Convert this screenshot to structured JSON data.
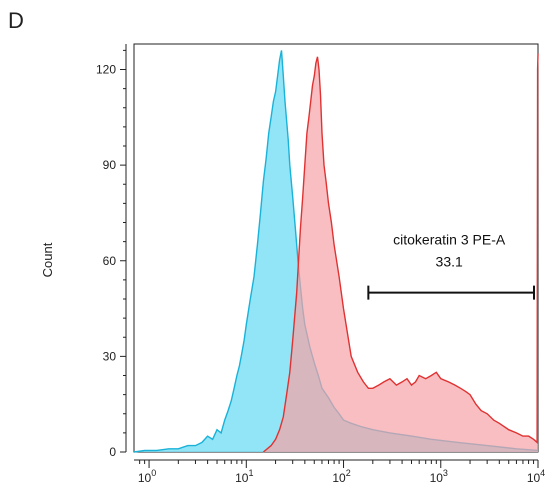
{
  "panel_label": "D",
  "chart_data": {
    "type": "area",
    "title": "",
    "xlabel": "",
    "ylabel": "Count",
    "xscale": "log",
    "xlim": [
      0.7,
      10000
    ],
    "ylim": [
      0,
      128
    ],
    "x_ticks": [
      {
        "value": 1,
        "base": "10",
        "exp": "0"
      },
      {
        "value": 10,
        "base": "10",
        "exp": "1"
      },
      {
        "value": 100,
        "base": "10",
        "exp": "2"
      },
      {
        "value": 1000,
        "base": "10",
        "exp": "3"
      },
      {
        "value": 10000,
        "base": "10",
        "exp": "4"
      }
    ],
    "y_ticks": [
      0,
      30,
      60,
      90,
      120
    ],
    "grid": false,
    "series": [
      {
        "color": "#1ab2d8",
        "fill": "#7fe0f5",
        "points": [
          [
            0.7,
            0
          ],
          [
            0.9,
            0.5
          ],
          [
            1.2,
            0.5
          ],
          [
            1.6,
            1
          ],
          [
            2.0,
            1
          ],
          [
            2.5,
            2
          ],
          [
            3.0,
            2
          ],
          [
            3.5,
            3
          ],
          [
            4.0,
            5
          ],
          [
            4.5,
            4
          ],
          [
            5.0,
            7
          ],
          [
            5.5,
            6
          ],
          [
            6.0,
            10
          ],
          [
            6.5,
            13
          ],
          [
            7.0,
            16
          ],
          [
            7.5,
            20
          ],
          [
            8.0,
            24
          ],
          [
            8.5,
            27
          ],
          [
            9.0,
            31
          ],
          [
            9.5,
            35
          ],
          [
            10.0,
            40
          ],
          [
            11.0,
            48
          ],
          [
            12.0,
            55
          ],
          [
            13.0,
            65
          ],
          [
            14.0,
            75
          ],
          [
            15.0,
            85
          ],
          [
            16.0,
            92
          ],
          [
            17.0,
            100
          ],
          [
            18.0,
            105
          ],
          [
            19.0,
            110
          ],
          [
            20.0,
            113
          ],
          [
            21.0,
            118
          ],
          [
            22.0,
            123
          ],
          [
            23.0,
            126
          ],
          [
            24.0,
            118
          ],
          [
            25.0,
            110
          ],
          [
            26.0,
            104
          ],
          [
            27.0,
            98
          ],
          [
            28.0,
            90
          ],
          [
            30.0,
            80
          ],
          [
            32.0,
            70
          ],
          [
            34.0,
            60
          ],
          [
            36.0,
            52
          ],
          [
            38.0,
            45
          ],
          [
            40.0,
            40
          ],
          [
            45.0,
            33
          ],
          [
            50.0,
            28
          ],
          [
            55.0,
            24
          ],
          [
            60.0,
            20
          ],
          [
            70.0,
            17
          ],
          [
            80.0,
            14
          ],
          [
            90.0,
            12
          ],
          [
            100.0,
            10
          ],
          [
            120.0,
            9
          ],
          [
            150.0,
            8
          ],
          [
            200.0,
            7
          ],
          [
            300.0,
            6
          ],
          [
            500.0,
            5
          ],
          [
            800.0,
            4
          ],
          [
            1500.0,
            3
          ],
          [
            3000.0,
            2
          ],
          [
            6000.0,
            1
          ],
          [
            10000.0,
            0.5
          ]
        ]
      },
      {
        "color": "#e03232",
        "fill": "#f7a3a6",
        "points": [
          [
            15.0,
            0
          ],
          [
            18.0,
            2
          ],
          [
            20.0,
            4
          ],
          [
            22.0,
            7
          ],
          [
            24.0,
            11
          ],
          [
            26.0,
            18
          ],
          [
            28.0,
            25
          ],
          [
            30.0,
            35
          ],
          [
            33.0,
            50
          ],
          [
            36.0,
            70
          ],
          [
            38.0,
            80
          ],
          [
            40.0,
            90
          ],
          [
            42.0,
            100
          ],
          [
            44.0,
            105
          ],
          [
            46.0,
            110
          ],
          [
            48.0,
            115
          ],
          [
            50.0,
            118
          ],
          [
            52.0,
            122
          ],
          [
            54.0,
            124
          ],
          [
            56.0,
            120
          ],
          [
            58.0,
            112
          ],
          [
            60.0,
            100
          ],
          [
            63.0,
            90
          ],
          [
            66.0,
            85
          ],
          [
            70.0,
            78
          ],
          [
            75.0,
            72
          ],
          [
            80.0,
            65
          ],
          [
            90.0,
            55
          ],
          [
            100.0,
            45
          ],
          [
            110.0,
            37
          ],
          [
            120.0,
            30
          ],
          [
            140.0,
            25
          ],
          [
            160.0,
            22
          ],
          [
            180.0,
            20
          ],
          [
            200.0,
            20
          ],
          [
            230.0,
            21
          ],
          [
            260.0,
            22
          ],
          [
            300.0,
            23
          ],
          [
            350.0,
            21
          ],
          [
            400.0,
            22
          ],
          [
            450.0,
            23
          ],
          [
            500.0,
            21
          ],
          [
            550.0,
            22
          ],
          [
            600.0,
            24
          ],
          [
            700.0,
            23
          ],
          [
            800.0,
            24
          ],
          [
            900.0,
            25
          ],
          [
            1000.0,
            23
          ],
          [
            1200.0,
            22
          ],
          [
            1400.0,
            21
          ],
          [
            1600.0,
            20
          ],
          [
            1800.0,
            19
          ],
          [
            2000.0,
            18
          ],
          [
            2300.0,
            15
          ],
          [
            2600.0,
            13
          ],
          [
            3000.0,
            12
          ],
          [
            3500.0,
            10
          ],
          [
            4000.0,
            9
          ],
          [
            5000.0,
            7
          ],
          [
            6000.0,
            6
          ],
          [
            7000.0,
            5
          ],
          [
            8000.0,
            5
          ],
          [
            9000.0,
            4
          ],
          [
            9800.0,
            3
          ],
          [
            9900.0,
            120
          ],
          [
            10000.0,
            125
          ]
        ]
      }
    ],
    "annotations": [
      {
        "text_lines": [
          "citokeratin 3 PE-A",
          "33.1"
        ],
        "gate_x": [
          180,
          10000
        ],
        "gate_y": 50
      }
    ]
  }
}
